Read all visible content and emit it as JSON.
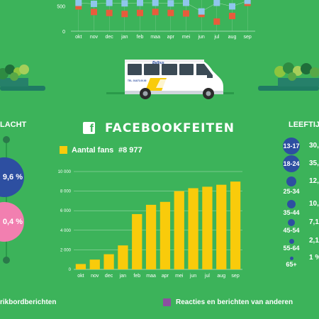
{
  "header": {
    "title": "FACEBOOKFEITEN",
    "icon": "facebook-icon"
  },
  "legend": {
    "label": "Aantal fans",
    "value": "#8 977",
    "color": "#f9cb0b"
  },
  "top_chart": {
    "type": "scatter",
    "categories": [
      "okt",
      "nov",
      "dec",
      "jan",
      "feb",
      "maa",
      "apr",
      "mei",
      "jun",
      "jul",
      "aug",
      "sep"
    ],
    "y_ticks": [
      "500",
      "0"
    ],
    "ylim": [
      0,
      700
    ],
    "series": [
      {
        "color": "#e85c3c",
        "values": [
          490,
          380,
          360,
          340,
          360,
          380,
          360,
          350,
          340,
          190,
          300,
          560
        ]
      },
      {
        "color": "#8fc6ec",
        "values": [
          560,
          540,
          560,
          550,
          560,
          560,
          550,
          560,
          390,
          560,
          490,
          600
        ]
      }
    ]
  },
  "van": {
    "brand": "Belbus",
    "phone": "TEL. 014/71.00.00"
  },
  "chart_data": {
    "type": "bar",
    "categories": [
      "okt",
      "nov",
      "dec",
      "jan",
      "feb",
      "maa",
      "apr",
      "mei",
      "jun",
      "jul",
      "aug",
      "sep"
    ],
    "values": [
      550,
      1000,
      1550,
      2450,
      5650,
      6600,
      6900,
      8000,
      8300,
      8450,
      8650,
      8977
    ],
    "y_ticks": [
      "0",
      "2 000",
      "4 000",
      "6 000",
      "8 000",
      "10 000"
    ],
    "ylim": [
      0,
      10000
    ],
    "color": "#f9cb0b",
    "xlabel": "",
    "ylabel": "",
    "grid": true
  },
  "left_panel": {
    "title": "LACHT",
    "circle_1": {
      "label": "9,6 %",
      "color": "#2d4fa1"
    },
    "circle_2": {
      "label": "0,4 %",
      "color": "#f27fb0"
    }
  },
  "age_panel": {
    "title": "LEEFTIJD",
    "items": [
      {
        "label": "13-17",
        "value": "30,"
      },
      {
        "label": "18-24",
        "value": "35,"
      },
      {
        "label": "25-34",
        "value": "12,"
      },
      {
        "label": "35-44",
        "value": "10,"
      },
      {
        "label": "45-54",
        "value": "7,1"
      },
      {
        "label": "55-64",
        "value": "2,1"
      },
      {
        "label": "65+",
        "value": "1 %"
      }
    ]
  },
  "footer": {
    "left": "rikbordberichten",
    "right": "Reacties en berichten van anderen",
    "right_color": "#8b4fa0"
  }
}
